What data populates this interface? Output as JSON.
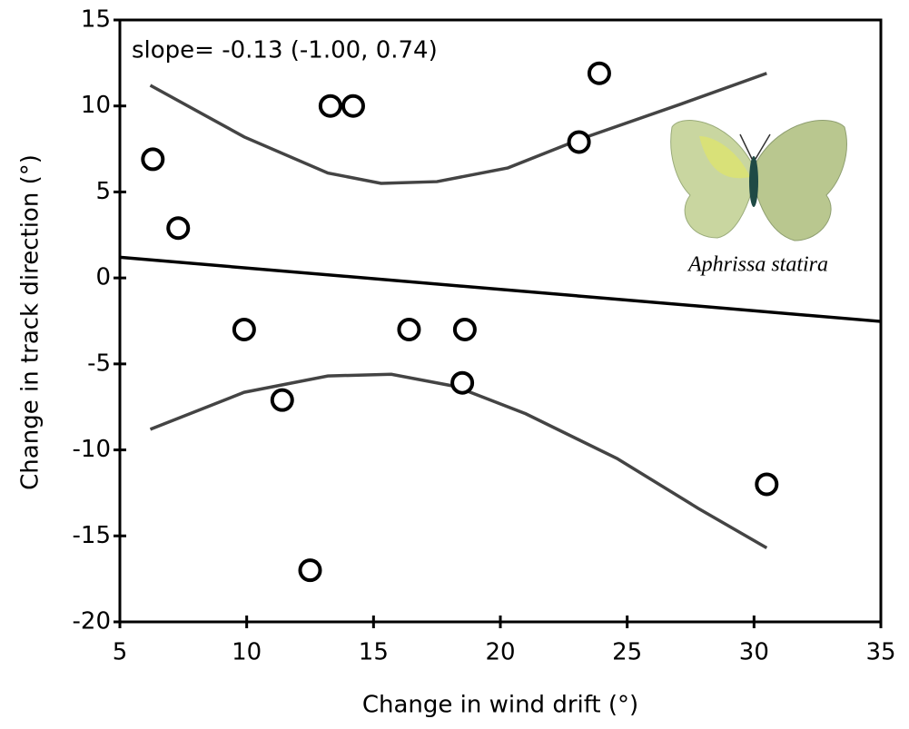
{
  "chart_data": {
    "type": "scatter",
    "annotation": "slope= -0.13 (-1.00, 0.74)",
    "image_caption": "Aphrissa statira",
    "xlabel": "Change in wind drift (°)",
    "ylabel": "Change in track direction (°)",
    "xlim": [
      5,
      35
    ],
    "ylim": [
      -20,
      15
    ],
    "xticks": [
      5,
      10,
      15,
      20,
      25,
      30,
      35
    ],
    "yticks": [
      -20,
      -15,
      -10,
      -5,
      0,
      5,
      10,
      15
    ],
    "x": [
      6.3,
      7.3,
      9.9,
      11.4,
      13.3,
      14.2,
      12.5,
      16.4,
      18.6,
      18.5,
      23.1,
      23.9,
      30.5
    ],
    "values": [
      6.9,
      2.9,
      -3.0,
      -7.1,
      10.0,
      10.0,
      -17.0,
      -3.0,
      -3.0,
      -6.1,
      7.9,
      11.9,
      -12.0
    ],
    "color": "#000000",
    "lines": [
      {
        "color": "#000000",
        "x": [
          5,
          35
        ],
        "y": [
          1.2,
          -2.53
        ]
      },
      {
        "color": "#444444",
        "x": [
          6.2,
          9.9,
          13.2,
          15.3,
          17.5,
          20.3,
          23.2,
          27.1,
          30.5
        ],
        "y": [
          11.2,
          8.2,
          6.1,
          5.5,
          5.6,
          6.4,
          8.1,
          10.1,
          11.9
        ]
      },
      {
        "color": "#444444",
        "x": [
          6.2,
          9.9,
          13.2,
          15.7,
          18.2,
          21.0,
          24.6,
          27.8,
          30.5
        ],
        "y": [
          -8.8,
          -6.65,
          -5.7,
          -5.6,
          -6.3,
          -7.9,
          -10.5,
          -13.4,
          -15.7
        ]
      }
    ]
  }
}
